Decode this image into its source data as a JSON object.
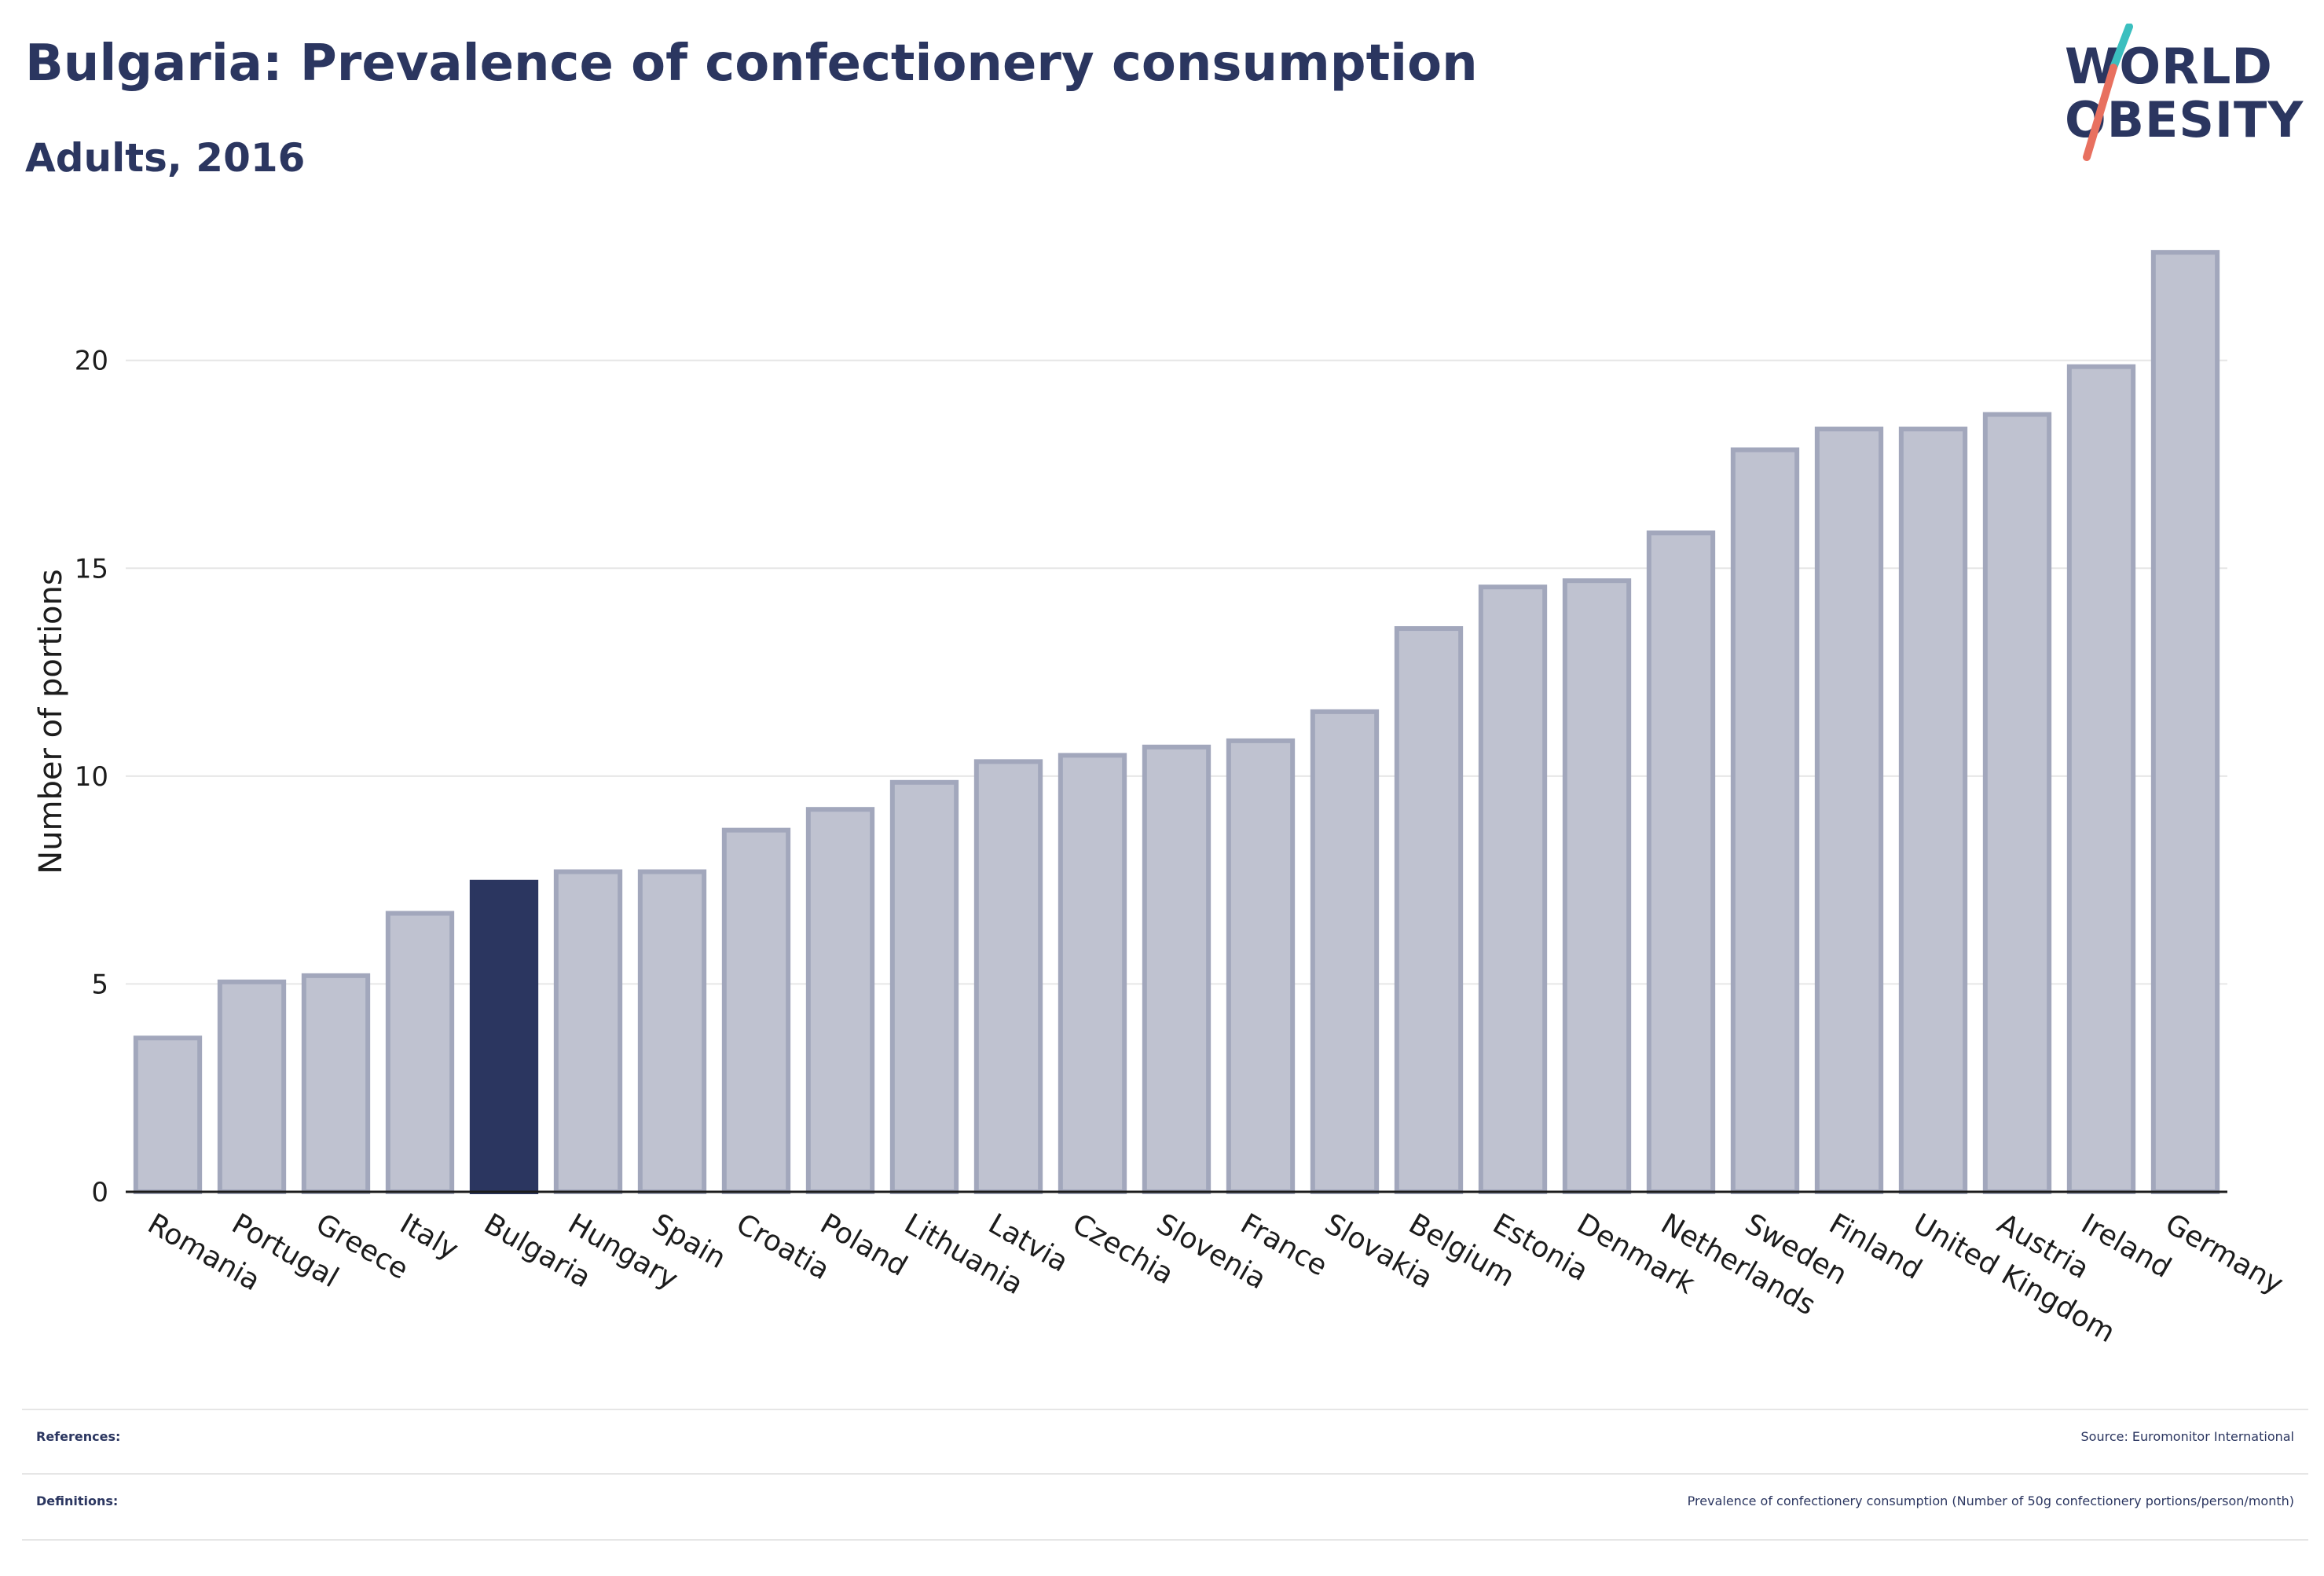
{
  "header": {
    "title": "Bulgaria: Prevalence of confectionery consumption",
    "subtitle": "Adults, 2016"
  },
  "logo": {
    "line1": "WORLD",
    "line2": "OBESITY",
    "accent_teal": "#3bbfbf",
    "accent_coral": "#e8705f"
  },
  "colors": {
    "bar": "#bfc2d0",
    "bar_border": "#a2a7bc",
    "highlight": "#2b3660",
    "grid": "#e6e6e6",
    "axis": "#1c1c1c",
    "text": "#1c1c1c"
  },
  "chart_data": {
    "type": "bar",
    "ylabel": "Number of portions",
    "xlabel": "",
    "ylim": [
      0,
      23
    ],
    "yticks": [
      0,
      5,
      10,
      15,
      20
    ],
    "grid": true,
    "highlight": "Bulgaria",
    "categories": [
      "Romania",
      "Portugal",
      "Greece",
      "Italy",
      "Bulgaria",
      "Hungary",
      "Spain",
      "Croatia",
      "Poland",
      "Lithuania",
      "Latvia",
      "Czechia",
      "Slovenia",
      "France",
      "Slovakia",
      "Belgium",
      "Estonia",
      "Denmark",
      "Netherlands",
      "Sweden",
      "Finland",
      "United Kingdom",
      "Austria",
      "Ireland",
      "Germany"
    ],
    "values": [
      3.7,
      5.05,
      5.2,
      6.7,
      7.45,
      7.7,
      7.7,
      8.7,
      9.2,
      9.85,
      10.35,
      10.5,
      10.7,
      10.85,
      11.55,
      13.55,
      14.55,
      14.7,
      15.85,
      17.85,
      18.35,
      18.35,
      18.7,
      19.85,
      22.6
    ]
  },
  "footer": {
    "references_label": "References:",
    "references_value": "Source: Euromonitor International",
    "definitions_label": "Definitions:",
    "definitions_value": "Prevalence of confectionery consumption (Number of 50g confectionery portions/person/month)"
  }
}
